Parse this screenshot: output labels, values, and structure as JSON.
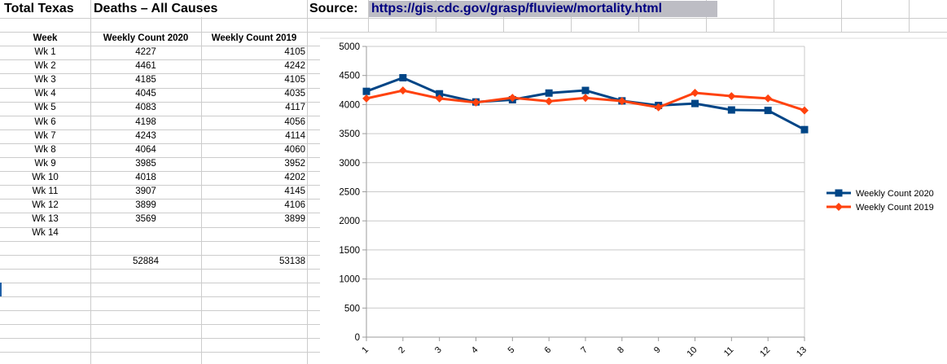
{
  "sheet": {
    "title_cell_a": "Total Texas",
    "title_cell_b": "Deaths – All Causes",
    "source_label": "Source:",
    "source_url": "https://gis.cdc.gov/grasp/fluview/mortality.html",
    "url_text_color": "#000080",
    "url_highlight_color": "#bdbdc4",
    "gridline_color": "#cccccc",
    "cell_cursor_color": "#1f5fa6"
  },
  "table": {
    "columns": [
      "Week",
      "Weekly Count 2020",
      "Weekly Count 2019"
    ],
    "rows": [
      {
        "week": "Wk 1",
        "count_2020": "4227",
        "count_2019": "4105"
      },
      {
        "week": "Wk 2",
        "count_2020": "4461",
        "count_2019": "4242"
      },
      {
        "week": "Wk 3",
        "count_2020": "4185",
        "count_2019": "4105"
      },
      {
        "week": "Wk 4",
        "count_2020": "4045",
        "count_2019": "4035"
      },
      {
        "week": "Wk 5",
        "count_2020": "4083",
        "count_2019": "4117"
      },
      {
        "week": "Wk 6",
        "count_2020": "4198",
        "count_2019": "4056"
      },
      {
        "week": "Wk 7",
        "count_2020": "4243",
        "count_2019": "4114"
      },
      {
        "week": "Wk 8",
        "count_2020": "4064",
        "count_2019": "4060"
      },
      {
        "week": "Wk 9",
        "count_2020": "3985",
        "count_2019": "3952"
      },
      {
        "week": "Wk 10",
        "count_2020": "4018",
        "count_2019": "4202"
      },
      {
        "week": "Wk 11",
        "count_2020": "3907",
        "count_2019": "4145"
      },
      {
        "week": "Wk 12",
        "count_2020": "3899",
        "count_2019": "4106"
      },
      {
        "week": "Wk 13",
        "count_2020": "3569",
        "count_2019": "3899"
      },
      {
        "week": "Wk 14",
        "count_2020": "",
        "count_2019": ""
      }
    ],
    "totals": {
      "count_2020": "52884",
      "count_2019": "53138"
    }
  },
  "chart_data": {
    "type": "line",
    "title": "",
    "xlabel": "",
    "ylabel": "",
    "categories": [
      "1",
      "2",
      "3",
      "4",
      "5",
      "6",
      "7",
      "8",
      "9",
      "10",
      "11",
      "12",
      "13"
    ],
    "series": [
      {
        "name": "Weekly Count 2020",
        "color": "#004586",
        "marker": "square",
        "values": [
          4227,
          4461,
          4185,
          4045,
          4083,
          4198,
          4243,
          4064,
          3985,
          4018,
          3907,
          3899,
          3569
        ]
      },
      {
        "name": "Weekly Count 2019",
        "color": "#FF420E",
        "marker": "diamond",
        "values": [
          4105,
          4242,
          4105,
          4035,
          4117,
          4056,
          4114,
          4060,
          3952,
          4202,
          4145,
          4106,
          3899
        ]
      }
    ],
    "ylim": [
      0,
      5000
    ],
    "ytick_interval": 500,
    "grid": "horizontal",
    "legend_position": "right",
    "axis_color": "#9b9b9b",
    "gridline_color": "#c9c9c9"
  }
}
